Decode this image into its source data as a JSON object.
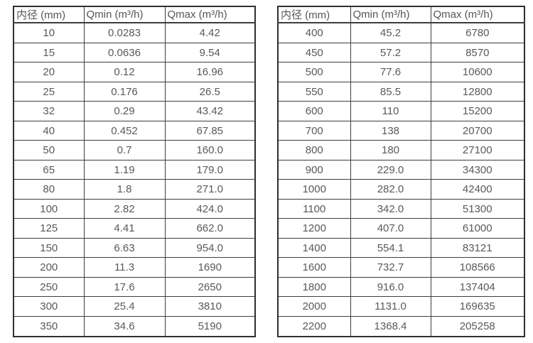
{
  "tables": [
    {
      "name": "flow-spec-small-diameters",
      "headers": [
        "内径 (mm)",
        "Qmin (m³/h)",
        "Qmax (m³/h)"
      ],
      "rows": [
        [
          "10",
          "0.0283",
          "4.42"
        ],
        [
          "15",
          "0.0636",
          "9.54"
        ],
        [
          "20",
          "0.12",
          "16.96"
        ],
        [
          "25",
          "0.176",
          "26.5"
        ],
        [
          "32",
          "0.29",
          "43.42"
        ],
        [
          "40",
          "0.452",
          "67.85"
        ],
        [
          "50",
          "0.7",
          "160.0"
        ],
        [
          "65",
          "1.19",
          "179.0"
        ],
        [
          "80",
          "1.8",
          "271.0"
        ],
        [
          "100",
          "2.82",
          "424.0"
        ],
        [
          "125",
          "4.41",
          "662.0"
        ],
        [
          "150",
          "6.63",
          "954.0"
        ],
        [
          "200",
          "11.3",
          "1690"
        ],
        [
          "250",
          "17.6",
          "2650"
        ],
        [
          "300",
          "25.4",
          "3810"
        ],
        [
          "350",
          "34.6",
          "5190"
        ]
      ]
    },
    {
      "name": "flow-spec-large-diameters",
      "headers": [
        "内径 (mm)",
        "Qmin (m³/h)",
        "Qmax (m³/h)"
      ],
      "rows": [
        [
          "400",
          "45.2",
          "6780"
        ],
        [
          "450",
          "57.2",
          "8570"
        ],
        [
          "500",
          "77.6",
          "10600"
        ],
        [
          "550",
          "85.5",
          "12800"
        ],
        [
          "600",
          "110",
          "15200"
        ],
        [
          "700",
          "138",
          "20700"
        ],
        [
          "800",
          "180",
          "27100"
        ],
        [
          "900",
          "229.0",
          "34300"
        ],
        [
          "1000",
          "282.0",
          "42400"
        ],
        [
          "1100",
          "342.0",
          "51300"
        ],
        [
          "1200",
          "407.0",
          "61000"
        ],
        [
          "1400",
          "554.1",
          "83121"
        ],
        [
          "1600",
          "732.7",
          "108566"
        ],
        [
          "1800",
          "916.0",
          "137404"
        ],
        [
          "2000",
          "1131.0",
          "169635"
        ],
        [
          "2200",
          "1368.4",
          "205258"
        ]
      ]
    }
  ],
  "colors": {
    "text": "#595959",
    "border_inner": "#3d3d3d",
    "border_outer": "#2f2f2f",
    "background": "#ffffff"
  }
}
